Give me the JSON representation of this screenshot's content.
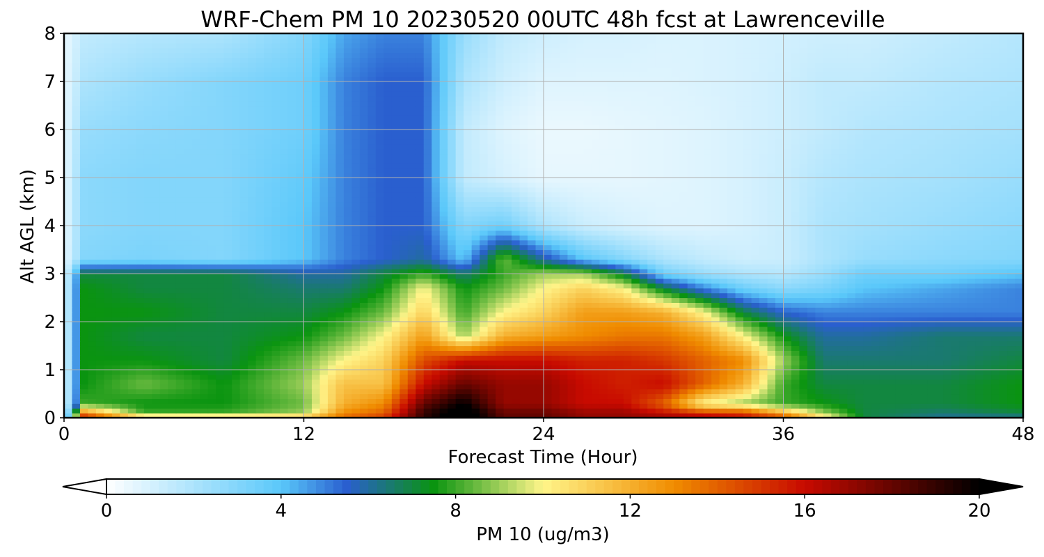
{
  "chart_data": {
    "type": "heatmap",
    "title": "WRF-Chem PM 10  20230520 00UTC 48h fcst at Lawrenceville",
    "xlabel": "Forecast Time (Hour)",
    "ylabel": "Alt AGL (km)",
    "xlim": [
      0,
      48
    ],
    "ylim": [
      0,
      8
    ],
    "xticks": [
      "0",
      "12",
      "24",
      "36",
      "48"
    ],
    "yticks": [
      "0",
      "1",
      "2",
      "3",
      "4",
      "5",
      "6",
      "7",
      "8"
    ],
    "grid": true,
    "x": [
      0,
      1,
      4,
      8,
      12,
      14,
      16,
      18,
      20,
      22,
      24,
      26,
      28,
      30,
      32,
      34,
      36,
      38,
      40,
      44,
      48
    ],
    "y": [
      0,
      0.1,
      0.3,
      0.7,
      1.2,
      1.7,
      2.2,
      2.7,
      3.0,
      3.3,
      4.0,
      5.0,
      6.0,
      7.0,
      8.0
    ],
    "z": [
      [
        0.5,
        16,
        12,
        12,
        12,
        14,
        15,
        19,
        21,
        18,
        18,
        17,
        17,
        17,
        17,
        16,
        15,
        11,
        7,
        6,
        6
      ],
      [
        0.5,
        13,
        8,
        8,
        9,
        13,
        14,
        19,
        21,
        18,
        18,
        17,
        17,
        16,
        15,
        15,
        12,
        9,
        7,
        6.5,
        7
      ],
      [
        0.5,
        8,
        7.5,
        7.5,
        8.5,
        12,
        13,
        18,
        20,
        17,
        17,
        16,
        16,
        14,
        10,
        9,
        8,
        7.5,
        7,
        7,
        7.5
      ],
      [
        0.5,
        7.5,
        8.5,
        7.5,
        9,
        11.5,
        11.5,
        16,
        18,
        17,
        17,
        16,
        15.5,
        16,
        14,
        12,
        8,
        7,
        7,
        7,
        7.5
      ],
      [
        0.5,
        7.5,
        7.5,
        7,
        8.5,
        10,
        11,
        14.5,
        16,
        16,
        16,
        15.5,
        15.5,
        15,
        14,
        13,
        9,
        6.5,
        6.5,
        6.5,
        7
      ],
      [
        0.5,
        7.5,
        7,
        7,
        7.5,
        8.5,
        10,
        12.5,
        9,
        12,
        12.5,
        13,
        13.5,
        13.5,
        12.5,
        10,
        7.5,
        6,
        6,
        6.5,
        6.5
      ],
      [
        0.5,
        7.5,
        7.5,
        7,
        7,
        7.5,
        8.5,
        11,
        8,
        10,
        11,
        12.5,
        12.5,
        12,
        10,
        7,
        5.5,
        5,
        5,
        5,
        5
      ],
      [
        0.5,
        7.5,
        7,
        7,
        6.5,
        6.5,
        7.5,
        10,
        7.5,
        8.5,
        10,
        11,
        10,
        7,
        5,
        3.5,
        2.8,
        3.2,
        4,
        4.5,
        5
      ],
      [
        0.5,
        7,
        7,
        7,
        6,
        6,
        7,
        8,
        6.5,
        8,
        9,
        9,
        7,
        3.5,
        2.5,
        2,
        1.8,
        2.5,
        3.5,
        3.5,
        4
      ],
      [
        0.5,
        3,
        3.2,
        3,
        4,
        5,
        5.5,
        6,
        4,
        8.5,
        6,
        4,
        3,
        2,
        1.5,
        1.2,
        1.3,
        2,
        2.5,
        2.8,
        3
      ],
      [
        0.5,
        2.8,
        3,
        3,
        4,
        5,
        5.5,
        5.5,
        3,
        3.5,
        2,
        1.3,
        1,
        0.8,
        0.8,
        1,
        1.3,
        2,
        2.2,
        2.5,
        2.8
      ],
      [
        0.5,
        2.8,
        3,
        3,
        3.8,
        5,
        5.5,
        5.5,
        1.5,
        1,
        0.6,
        0.6,
        0.6,
        0.7,
        0.8,
        1,
        1.3,
        1.8,
        2,
        2.2,
        2.5
      ],
      [
        0.5,
        2.5,
        2.8,
        3,
        3.5,
        5,
        5.5,
        5.5,
        1.5,
        0.8,
        0.5,
        0.5,
        0.6,
        0.7,
        0.8,
        1,
        1.2,
        1.5,
        1.8,
        2,
        2.2
      ],
      [
        0.5,
        2,
        2.5,
        3,
        3.5,
        5,
        5.5,
        5.5,
        2,
        1.2,
        0.8,
        0.8,
        0.8,
        0.8,
        0.9,
        1,
        1.2,
        1.5,
        1.5,
        1.8,
        2
      ],
      [
        0.5,
        1.5,
        1.8,
        2,
        3,
        4.5,
        5,
        5,
        2.5,
        1.5,
        1.2,
        1,
        1,
        0.9,
        0.9,
        1,
        1.1,
        1.2,
        1.2,
        1.5,
        1.8
      ]
    ],
    "colorbar": {
      "label": "PM 10  (ug/m3)",
      "min": 0,
      "max": 20,
      "ticks": [
        "0",
        "4",
        "8",
        "12",
        "16",
        "20"
      ],
      "extend": "both",
      "colors": [
        "#ffffff",
        "#5ac8fa",
        "#2a5fcf",
        "#0a9410",
        "#fff58a",
        "#f08c00",
        "#c80a00",
        "#000000"
      ],
      "color_stops": [
        0,
        4,
        5.5,
        7.5,
        10,
        13,
        16,
        20
      ]
    }
  }
}
